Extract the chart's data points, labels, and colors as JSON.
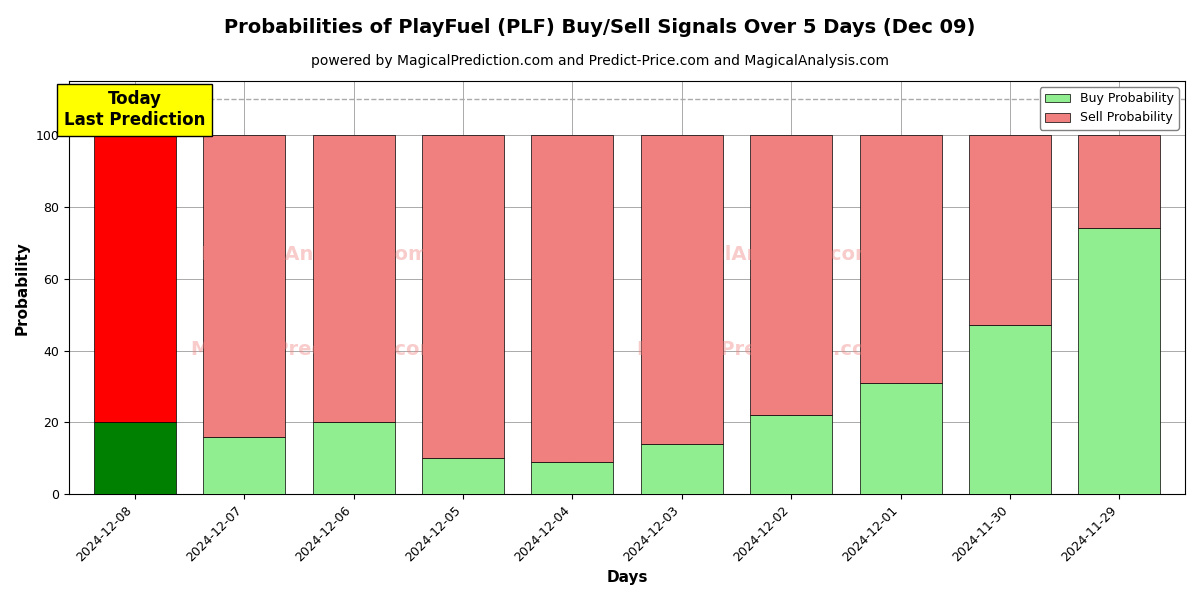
{
  "title": "Probabilities of PlayFuel (PLF) Buy/Sell Signals Over 5 Days (Dec 09)",
  "subtitle": "powered by MagicalPrediction.com and Predict-Price.com and MagicalAnalysis.com",
  "xlabel": "Days",
  "ylabel": "Probability",
  "categories": [
    "2024-12-08",
    "2024-12-07",
    "2024-12-06",
    "2024-12-05",
    "2024-12-04",
    "2024-12-03",
    "2024-12-02",
    "2024-12-01",
    "2024-11-30",
    "2024-11-29"
  ],
  "buy_values": [
    20,
    16,
    20,
    10,
    9,
    14,
    22,
    31,
    47,
    74
  ],
  "sell_values": [
    80,
    84,
    80,
    90,
    91,
    86,
    78,
    69,
    53,
    26
  ],
  "buy_color_today": "#008000",
  "sell_color_today": "#ff0000",
  "buy_color_normal": "#90ee90",
  "sell_color_normal": "#f08080",
  "bar_edge_color": "#000000",
  "bar_width": 0.75,
  "ylim": [
    0,
    115
  ],
  "yticks": [
    0,
    20,
    40,
    60,
    80,
    100
  ],
  "dashed_line_y": 110,
  "legend_buy_label": "Buy Probability",
  "legend_sell_label": "Sell Probability",
  "today_label_line1": "Today",
  "today_label_line2": "Last Prediction",
  "today_box_color": "#ffff00",
  "watermark_color": "#f08080",
  "watermark_alpha": 0.4,
  "grid_color": "#aaaaaa",
  "background_color": "#ffffff",
  "title_fontsize": 14,
  "subtitle_fontsize": 10,
  "axis_label_fontsize": 11,
  "tick_fontsize": 9
}
